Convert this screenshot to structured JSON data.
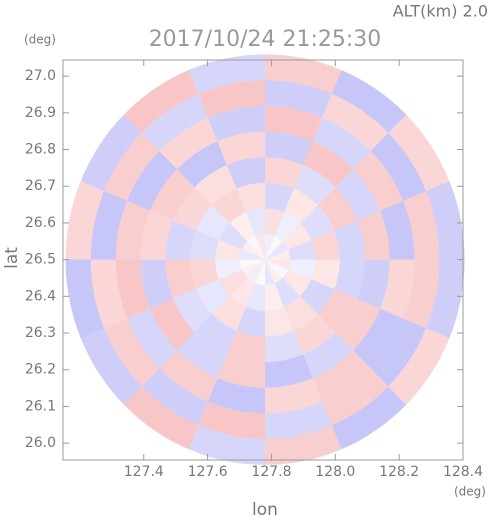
{
  "chart_data": {
    "type": "polar-field",
    "title": "2017/10/24 21:25:30",
    "subtitle": "ALT(km) 2.0",
    "x_label": "lon",
    "y_label": "lat",
    "x_unit": "(deg)",
    "y_unit": "(deg)",
    "xlim": [
      127.147,
      128.4
    ],
    "ylim": [
      25.954,
      27.044
    ],
    "xticks": [
      127.4,
      127.6,
      127.8,
      {
        "value": 128.0,
        "label": "128.0"
      },
      128.2,
      128.4
    ],
    "yticks": [
      {
        "value": 26.0,
        "label": "26.0"
      },
      26.1,
      26.2,
      26.3,
      26.4,
      26.5,
      26.6,
      26.7,
      26.8,
      26.9,
      {
        "value": 27.0,
        "label": "27.0"
      }
    ],
    "center": {
      "x": 127.78,
      "y": 26.5
    },
    "ring_edges_lon": [
      0,
      0.078,
      0.156,
      0.234,
      0.312,
      0.39,
      0.468,
      0.546,
      0.625
    ],
    "positive_color": "#f08a8a",
    "negative_color": "#8a8af0",
    "values": [
      [
        0.2,
        -0.3,
        0.1,
        -0.2,
        0.3,
        -0.1,
        0.2,
        -0.3,
        0.1,
        0.2,
        -0.2,
        0.1,
        -0.3,
        0.2,
        -0.1,
        0.3
      ],
      [
        -0.4,
        0.3,
        -0.2,
        0.4,
        -0.3,
        0.2,
        -0.4,
        0.3,
        -0.2,
        0.4,
        0.3,
        -0.3,
        0.2,
        -0.4,
        0.3,
        -0.2
      ],
      [
        0.5,
        -0.4,
        0.3,
        -0.5,
        0.4,
        0.5,
        -0.3,
        -0.4,
        0.5,
        -0.3,
        0.4,
        -0.5,
        0.3,
        0.4,
        -0.5,
        0.3
      ],
      [
        -0.5,
        0.6,
        -0.4,
        0.5,
        -0.6,
        0.4,
        0.5,
        -0.5,
        0.6,
        -0.4,
        -0.5,
        0.6,
        -0.4,
        0.5,
        0.6,
        -0.5
      ],
      [
        0.6,
        -0.5,
        0.7,
        -0.6,
        0.5,
        -0.7,
        0.6,
        0.5,
        -0.6,
        0.7,
        -0.5,
        0.6,
        -0.7,
        -0.5,
        0.6,
        -0.6
      ],
      [
        -0.7,
        0.6,
        -0.5,
        0.7,
        -0.6,
        0.5,
        -0.7,
        0.6,
        0.7,
        -0.5,
        0.6,
        -0.7,
        0.5,
        0.6,
        -0.7,
        0.5
      ],
      [
        0.6,
        -0.7,
        0.5,
        -0.6,
        0.7,
        -0.5,
        0.6,
        -0.7,
        0.5,
        0.6,
        -0.6,
        0.7,
        -0.5,
        0.6,
        -0.7,
        0.6
      ],
      [
        -0.6,
        0.5,
        -0.7,
        0.6,
        -0.5,
        0.7,
        -0.6,
        0.5,
        -0.7,
        -0.6,
        0.7,
        -0.5,
        0.6,
        -0.7,
        0.5,
        -0.6
      ]
    ]
  }
}
